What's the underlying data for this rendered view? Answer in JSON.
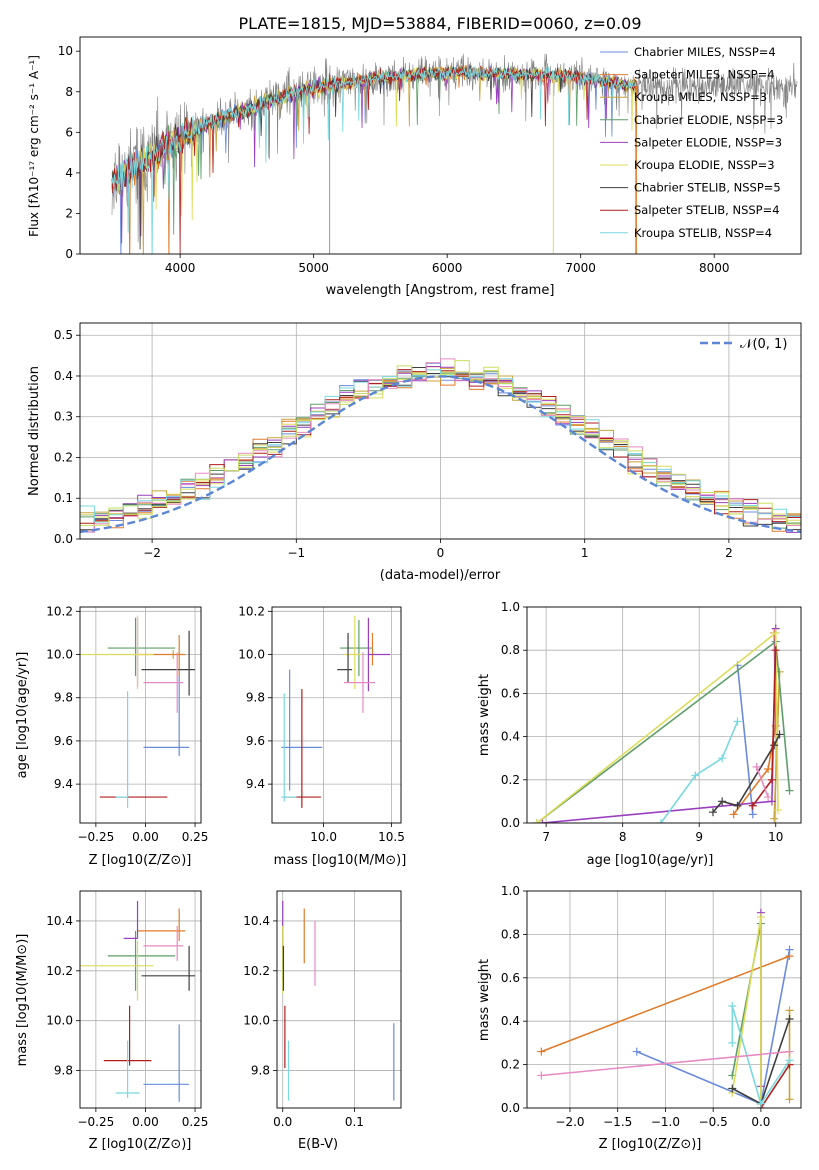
{
  "colors": {
    "chabrier_miles": "#6a8bdc",
    "salpeter_miles": "#e07b2a",
    "kroupa_miles": "#c8a23a",
    "chabrier_elodie": "#5f9e6a",
    "salpeter_elodie": "#9b3fbf",
    "kroupa_elodie": "#dcdc5a",
    "chabrier_stelib": "#3f3f3f",
    "salpeter_stelib": "#b01e1e",
    "kroupa_stelib": "#79d8e0",
    "data_gray": "#808080",
    "normal": "#5b86d6",
    "pink": "#e78ac3",
    "lime": "#c8e060"
  },
  "chart_data": [
    {
      "id": "spectrum",
      "type": "line",
      "title": "PLATE=1815, MJD=53884, FIBERID=0060, z=0.09",
      "xlabel": "wavelength [Angstrom, rest frame]",
      "ylabel": "Flux [fλ10⁻¹⁷ erg cm⁻² s⁻¹ A⁻¹]",
      "xlim": [
        3250,
        8650
      ],
      "ylim": [
        0,
        10.7
      ],
      "xticks": [
        4000,
        5000,
        6000,
        7000,
        8000
      ],
      "yticks": [
        0,
        2,
        4,
        6,
        8,
        10
      ],
      "legend_position": "top-right",
      "legend": [
        "Chabrier MILES, NSSP=4",
        "Salpeter MILES, NSSP=4",
        "Kroupa MILES, NSSP=3",
        "Chabrier ELODIE, NSSP=3",
        "Salpeter ELODIE, NSSP=3",
        "Kroupa ELODIE, NSSP=3",
        "Chabrier STELIB, NSSP=5",
        "Salpeter STELIB, NSSP=4",
        "Kroupa STELIB, NSSP=4"
      ],
      "continuum": {
        "x": [
          3500,
          3700,
          3900,
          4100,
          4300,
          4500,
          4700,
          4900,
          5100,
          5300,
          5500,
          5700,
          5900,
          6100,
          6300,
          6500,
          6700,
          6900,
          7100,
          7300,
          7400
        ],
        "y": [
          3.6,
          4.4,
          5.3,
          6.1,
          6.7,
          7.1,
          7.6,
          8.0,
          8.3,
          8.5,
          8.7,
          8.8,
          8.9,
          9.0,
          8.9,
          8.9,
          8.8,
          8.8,
          8.6,
          8.4,
          8.3
        ]
      },
      "observed_range": [
        3490,
        8620
      ],
      "model_range": [
        3490,
        7420
      ]
    },
    {
      "id": "residuals",
      "type": "bar",
      "xlabel": "(data-model)/error",
      "ylabel": "Normed distribution",
      "xlim": [
        -2.5,
        2.5
      ],
      "ylim": [
        0,
        0.53
      ],
      "xticks": [
        -2,
        -1,
        0,
        1,
        2
      ],
      "yticks": [
        0,
        0.1,
        0.2,
        0.3,
        0.4,
        0.5
      ],
      "legend": [
        "𝒩(0, 1)"
      ],
      "legend_position": "top-right",
      "bin_width": 0.1,
      "grid": true
    },
    {
      "id": "z_age",
      "type": "scatter",
      "xlabel": "Z [log10(Z/Z⊙)]",
      "ylabel": "age  [log10(age/yr)]",
      "xlim": [
        -0.33,
        0.28
      ],
      "ylim": [
        9.22,
        10.22
      ],
      "xticks": [
        -0.25,
        0.0,
        0.25
      ],
      "yticks": [
        9.4,
        9.6,
        9.8,
        10.0,
        10.2
      ],
      "points": [
        {
          "series": "chabrier_miles",
          "x": 0.17,
          "y": 9.57,
          "xerr": [
            0.18,
            0.05
          ],
          "yerr": [
            0.04,
            0.33
          ]
        },
        {
          "series": "salpeter_miles",
          "x": 0.17,
          "y": 10.0,
          "xerr": [
            0.21,
            0.03
          ],
          "yerr": [
            0.1,
            0.09
          ]
        },
        {
          "series": "kroupa_miles",
          "x": 0.14,
          "y": 10.0,
          "xerr": [
            0.0,
            0.0
          ],
          "yerr": [
            0.02,
            0.02
          ]
        },
        {
          "series": "chabrier_elodie",
          "x": -0.05,
          "y": 10.03,
          "xerr": [
            0.14,
            0.2
          ],
          "yerr": [
            0.13,
            0.14
          ]
        },
        {
          "series": "salpeter_elodie",
          "x": -0.04,
          "y": 10.0,
          "xerr": [
            0.0,
            0.0
          ],
          "yerr": [
            0.15,
            0.17
          ]
        },
        {
          "series": "kroupa_elodie",
          "x": -0.04,
          "y": 10.0,
          "xerr": [
            0.29,
            0.08
          ],
          "yerr": [
            0.16,
            0.18
          ]
        },
        {
          "series": "chabrier_stelib",
          "x": 0.22,
          "y": 9.93,
          "xerr": [
            0.24,
            0.03
          ],
          "yerr": [
            0.12,
            0.18
          ]
        },
        {
          "series": "salpeter_stelib",
          "x": -0.04,
          "y": 9.34,
          "xerr": [
            0.19,
            0.15
          ],
          "yerr": [
            0.0,
            0.0
          ]
        },
        {
          "series": "kroupa_stelib",
          "x": -0.09,
          "y": 9.34,
          "xerr": [
            0.06,
            0.0
          ],
          "yerr": [
            0.05,
            0.49
          ]
        },
        {
          "series": "pink",
          "x": 0.16,
          "y": 9.87,
          "xerr": [
            0.17,
            0.03
          ],
          "yerr": [
            0.14,
            0.14
          ]
        }
      ]
    },
    {
      "id": "mass_age",
      "type": "scatter",
      "xlabel": "mass [log10(M/M⊙)]",
      "ylabel": "",
      "xlim": [
        9.62,
        10.57
      ],
      "ylim": [
        9.22,
        10.22
      ],
      "xticks": [
        10.0,
        10.5
      ],
      "yticks": [
        9.4,
        9.6,
        9.8,
        10.0,
        10.2
      ],
      "points": [
        {
          "series": "chabrier_miles",
          "x": 9.75,
          "y": 9.57,
          "xerr": [
            0.06,
            0.24
          ],
          "yerr": [
            0.2,
            0.36
          ]
        },
        {
          "series": "salpeter_miles",
          "x": 10.36,
          "y": 10.0,
          "xerr": [
            0.0,
            0.0
          ],
          "yerr": [
            0.05,
            0.1
          ]
        },
        {
          "series": "chabrier_elodie",
          "x": 10.26,
          "y": 10.03,
          "xerr": [
            0.14,
            0.1
          ],
          "yerr": [
            0.13,
            0.13
          ]
        },
        {
          "series": "salpeter_elodie",
          "x": 10.33,
          "y": 10.0,
          "xerr": [
            0.0,
            0.16
          ],
          "yerr": [
            0.17,
            0.17
          ]
        },
        {
          "series": "kroupa_elodie",
          "x": 10.23,
          "y": 10.0,
          "xerr": [
            0.08,
            0.05
          ],
          "yerr": [
            0.16,
            0.18
          ]
        },
        {
          "series": "chabrier_stelib",
          "x": 10.18,
          "y": 9.93,
          "xerr": [
            0.08,
            0.03
          ],
          "yerr": [
            0.06,
            0.17
          ]
        },
        {
          "series": "salpeter_stelib",
          "x": 9.84,
          "y": 9.34,
          "xerr": [
            0.14,
            0.14
          ],
          "yerr": [
            0.05,
            0.5
          ]
        },
        {
          "series": "kroupa_stelib",
          "x": 9.71,
          "y": 9.34,
          "xerr": [
            0.02,
            0.09
          ],
          "yerr": [
            0.02,
            0.48
          ]
        },
        {
          "series": "pink",
          "x": 10.29,
          "y": 9.87,
          "xerr": [
            0.14,
            0.09
          ],
          "yerr": [
            0.14,
            0.14
          ]
        }
      ]
    },
    {
      "id": "age_weight",
      "type": "line",
      "xlabel": "age  [log10(age/yr)]",
      "ylabel": "mass weight",
      "xlim": [
        6.75,
        10.33
      ],
      "ylim": [
        0,
        1.0
      ],
      "xticks": [
        7,
        8,
        9,
        10
      ],
      "yticks": [
        0.0,
        0.2,
        0.4,
        0.6,
        0.8,
        1.0
      ],
      "series": [
        {
          "name": "Chabrier MILES",
          "color": "chabrier_miles",
          "x": [
            9.5,
            9.7
          ],
          "y": [
            0.73,
            0.04
          ]
        },
        {
          "name": "Salpeter MILES",
          "color": "salpeter_miles",
          "x": [
            9.45,
            9.9,
            10.0,
            9.98
          ],
          "y": [
            0.04,
            0.25,
            0.45,
            0.88
          ]
        },
        {
          "name": "Kroupa MILES",
          "color": "kroupa_miles",
          "x": [
            9.98,
            10.05
          ],
          "y": [
            0.02,
            0.7
          ]
        },
        {
          "name": "Chabrier ELODIE",
          "color": "chabrier_elodie",
          "x": [
            6.88,
            10.0,
            10.18
          ],
          "y": [
            0.0,
            0.84,
            0.15
          ]
        },
        {
          "name": "Salpeter ELODIE",
          "color": "salpeter_elodie",
          "x": [
            6.95,
            9.95,
            10.0
          ],
          "y": [
            0.0,
            0.1,
            0.9
          ]
        },
        {
          "name": "Kroupa ELODIE",
          "color": "kroupa_elodie",
          "x": [
            6.88,
            10.0,
            10.03
          ],
          "y": [
            0.0,
            0.88,
            0.06
          ]
        },
        {
          "name": "Chabrier STELIB",
          "color": "chabrier_stelib",
          "x": [
            9.18,
            9.3,
            9.5,
            9.98,
            10.05
          ],
          "y": [
            0.05,
            0.1,
            0.08,
            0.36,
            0.41
          ]
        },
        {
          "name": "Salpeter STELIB",
          "color": "salpeter_stelib",
          "x": [
            9.7,
            9.95,
            10.0
          ],
          "y": [
            0.08,
            0.2,
            0.8
          ]
        },
        {
          "name": "Kroupa STELIB",
          "color": "kroupa_stelib",
          "x": [
            8.5,
            8.95,
            9.3,
            9.5
          ],
          "y": [
            0.0,
            0.22,
            0.3,
            0.47
          ]
        },
        {
          "name": "",
          "color": "pink",
          "x": [
            9.75,
            9.9
          ],
          "y": [
            0.26,
            0.12
          ]
        }
      ]
    },
    {
      "id": "z_mass",
      "type": "scatter",
      "xlabel": "Z [log10(Z/Z⊙)]",
      "ylabel": "mass [log10(M/M⊙)]",
      "xlim": [
        -0.33,
        0.28
      ],
      "ylim": [
        9.65,
        10.52
      ],
      "xticks": [
        -0.25,
        0.0,
        0.25
      ],
      "yticks": [
        9.8,
        10.0,
        10.2,
        10.4
      ],
      "points": [
        {
          "series": "chabrier_miles",
          "x": 0.17,
          "y": 9.745,
          "xerr": [
            0.18,
            0.05
          ],
          "yerr": [
            0.07,
            0.24
          ]
        },
        {
          "series": "salpeter_miles",
          "x": 0.17,
          "y": 10.36,
          "xerr": [
            0.21,
            0.03
          ],
          "yerr": [
            0.04,
            0.09
          ]
        },
        {
          "series": "chabrier_elodie",
          "x": -0.05,
          "y": 10.26,
          "xerr": [
            0.14,
            0.2
          ],
          "yerr": [
            0.14,
            0.1
          ]
        },
        {
          "series": "salpeter_elodie",
          "x": -0.04,
          "y": 10.33,
          "xerr": [
            0.07,
            0.0
          ],
          "yerr": [
            0.0,
            0.15
          ]
        },
        {
          "series": "kroupa_elodie",
          "x": -0.04,
          "y": 10.22,
          "xerr": [
            0.29,
            0.08
          ],
          "yerr": [
            0.14,
            0.1
          ]
        },
        {
          "series": "chabrier_stelib",
          "x": 0.22,
          "y": 10.18,
          "xerr": [
            0.24,
            0.03
          ],
          "yerr": [
            0.06,
            0.12
          ]
        },
        {
          "series": "salpeter_stelib",
          "x": -0.08,
          "y": 9.84,
          "xerr": [
            0.13,
            0.11
          ],
          "yerr": [
            0.02,
            0.22
          ]
        },
        {
          "series": "kroupa_stelib",
          "x": -0.09,
          "y": 9.71,
          "xerr": [
            0.06,
            0.06
          ],
          "yerr": [
            0.02,
            0.21
          ]
        },
        {
          "series": "pink",
          "x": 0.16,
          "y": 10.3,
          "xerr": [
            0.17,
            0.03
          ],
          "yerr": [
            0.06,
            0.08
          ]
        }
      ]
    },
    {
      "id": "ebv_mass",
      "type": "scatter",
      "xlabel": "E(B-V)",
      "ylabel": "",
      "xlim": [
        -0.008,
        0.165
      ],
      "ylim": [
        9.65,
        10.52
      ],
      "xticks": [
        0.0,
        0.1
      ],
      "yticks": [
        9.8,
        10.0,
        10.2,
        10.4
      ],
      "points": [
        {
          "series": "chabrier_miles",
          "x": 0.155,
          "y": 9.85,
          "xerr": [
            0.0,
            0.0
          ],
          "yerr": [
            0.17,
            0.14
          ]
        },
        {
          "series": "salpeter_miles",
          "x": 0.03,
          "y": 10.36,
          "xerr": [
            0.0,
            0.0
          ],
          "yerr": [
            0.13,
            0.09
          ]
        },
        {
          "series": "chabrier_elodie",
          "x": 0.0,
          "y": 10.26,
          "xerr": [
            0.0,
            0.0
          ],
          "yerr": [
            0.1,
            0.1
          ]
        },
        {
          "series": "salpeter_elodie",
          "x": 0.0,
          "y": 10.4,
          "xerr": [
            0.0,
            0.0
          ],
          "yerr": [
            0.13,
            0.08
          ]
        },
        {
          "series": "kroupa_elodie",
          "x": 0.0,
          "y": 10.25,
          "xerr": [
            0.0,
            0.0
          ],
          "yerr": [
            0.14,
            0.13
          ]
        },
        {
          "series": "chabrier_stelib",
          "x": 0.001,
          "y": 10.18,
          "xerr": [
            0.0,
            0.0
          ],
          "yerr": [
            0.06,
            0.12
          ]
        },
        {
          "series": "salpeter_stelib",
          "x": 0.003,
          "y": 9.93,
          "xerr": [
            0.0,
            0.0
          ],
          "yerr": [
            0.12,
            0.13
          ]
        },
        {
          "series": "kroupa_stelib",
          "x": 0.008,
          "y": 9.8,
          "xerr": [
            0.0,
            0.0
          ],
          "yerr": [
            0.12,
            0.12
          ]
        },
        {
          "series": "pink",
          "x": 0.045,
          "y": 10.26,
          "xerr": [
            0.0,
            0.0
          ],
          "yerr": [
            0.12,
            0.14
          ]
        }
      ]
    },
    {
      "id": "z_weight",
      "type": "line",
      "xlabel": "Z [log10(Z/Z⊙)]",
      "ylabel": "mass weight",
      "xlim": [
        -2.45,
        0.42
      ],
      "ylim": [
        0,
        1.0
      ],
      "xticks": [
        -2.0,
        -1.5,
        -1.0,
        -0.5,
        0.0
      ],
      "yticks": [
        0.0,
        0.2,
        0.4,
        0.6,
        0.8,
        1.0
      ],
      "series": [
        {
          "name": "Chabrier MILES",
          "color": "chabrier_miles",
          "x": [
            -1.3,
            0.0,
            0.3
          ],
          "y": [
            0.26,
            0.02,
            0.73
          ]
        },
        {
          "name": "Salpeter MILES",
          "color": "salpeter_miles",
          "x": [
            -2.3,
            0.3
          ],
          "y": [
            0.26,
            0.7
          ]
        },
        {
          "name": "Kroupa MILES",
          "color": "kroupa_miles",
          "x": [
            0.3,
            0.3
          ],
          "y": [
            0.04,
            0.45
          ]
        },
        {
          "name": "Chabrier ELODIE",
          "color": "chabrier_elodie",
          "x": [
            -0.3,
            0.0,
            0.0
          ],
          "y": [
            0.15,
            0.85,
            0.02
          ]
        },
        {
          "name": "Salpeter ELODIE",
          "color": "salpeter_elodie",
          "x": [
            0.0,
            0.0
          ],
          "y": [
            0.1,
            0.9
          ]
        },
        {
          "name": "Kroupa ELODIE",
          "color": "kroupa_elodie",
          "x": [
            -0.3,
            0.0,
            0.0
          ],
          "y": [
            0.07,
            0.88,
            0.02
          ]
        },
        {
          "name": "Chabrier STELIB",
          "color": "chabrier_stelib",
          "x": [
            -0.3,
            0.0,
            0.3
          ],
          "y": [
            0.09,
            0.02,
            0.41
          ]
        },
        {
          "name": "Salpeter STELIB",
          "color": "salpeter_stelib",
          "x": [
            0.0,
            0.3
          ],
          "y": [
            0.0,
            0.2
          ]
        },
        {
          "name": "Kroupa STELIB",
          "color": "kroupa_stelib",
          "x": [
            -0.3,
            -0.3,
            0.0,
            0.3
          ],
          "y": [
            0.3,
            0.47,
            0.02,
            0.22
          ]
        },
        {
          "name": "",
          "color": "pink",
          "x": [
            -2.3,
            0.3
          ],
          "y": [
            0.15,
            0.26
          ]
        }
      ]
    }
  ]
}
